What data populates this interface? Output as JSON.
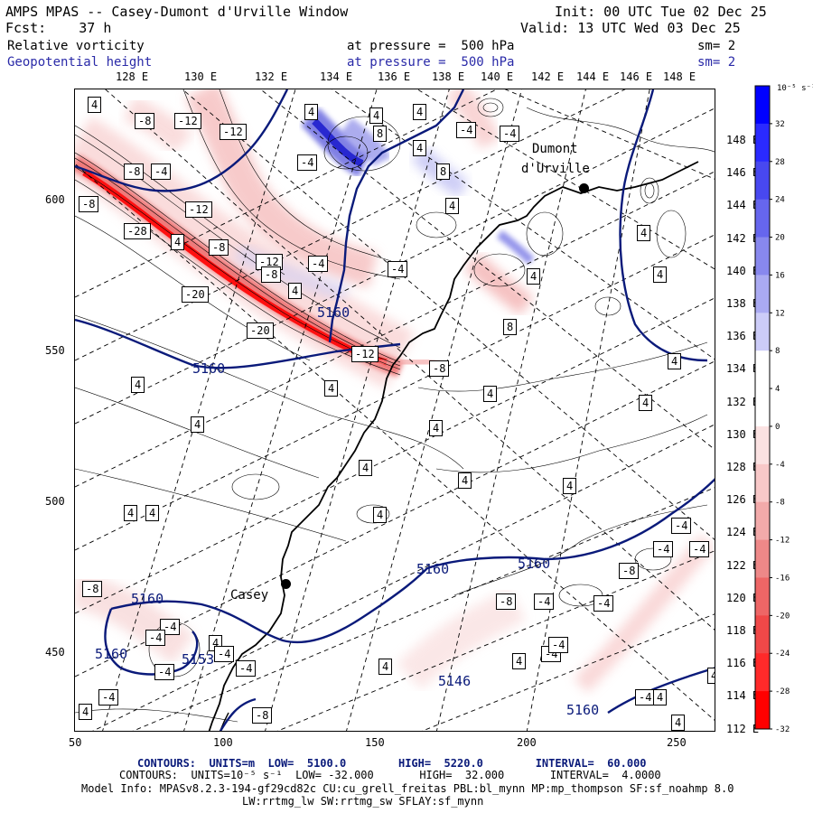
{
  "header": {
    "model_title": "AMPS MPAS -- Casey-Dumont d'Urville Window",
    "init": "Init: 00 UTC Tue 02 Dec 25",
    "fcst": "Fcst:    37 h",
    "valid": "Valid: 13 UTC Wed 03 Dec 25",
    "field1_name": "Relative vorticity",
    "field1_level": "at pressure =  500 hPa",
    "field1_sm": "sm= 2",
    "field2_name": "Geopotential height",
    "field2_level": "at pressure =  500 hPa",
    "field2_sm": "sm= 2"
  },
  "axes": {
    "top_lon": [
      "128 E",
      "130 E",
      "132 E",
      "134 E",
      "136 E",
      "138 E",
      "140 E",
      "142 E",
      "144 E",
      "146 E",
      "148 E"
    ],
    "right_lon": [
      "148 E",
      "146 E",
      "144 E",
      "142 E",
      "140 E",
      "138 E",
      "136 E",
      "134 E",
      "132 E",
      "130 E",
      "128 E",
      "126 E",
      "124 E",
      "122 E",
      "120 E",
      "118 E",
      "116 E",
      "114 E",
      "112 E"
    ],
    "left_y": [
      "600",
      "550",
      "500",
      "450"
    ],
    "bottom_x": [
      "50",
      "100",
      "150",
      "200",
      "250"
    ]
  },
  "places": {
    "dumont": "Dumont d'Urville",
    "dumont_line1": "Dumont",
    "dumont_line2": "d'Urville",
    "casey": "Casey"
  },
  "colorbar": {
    "unit": "10⁻⁵ s⁻¹",
    "ticks": [
      "32",
      "28",
      "24",
      "20",
      "16",
      "12",
      "8",
      "4",
      "0",
      "-4",
      "-8",
      "-12",
      "-16",
      "-20",
      "-24",
      "-28",
      "-32"
    ],
    "colors": [
      "#0000ff",
      "#2a2aff",
      "#4848f0",
      "#6666ee",
      "#8888ee",
      "#aaaaf2",
      "#ccccf8",
      "#ffffff",
      "#ffffff",
      "#fbe2e2",
      "#f8c8c8",
      "#f2aaaa",
      "#ee8888",
      "#ee6666",
      "#f04848",
      "#ff2a2a",
      "#ff0000"
    ]
  },
  "geopotential_labels": [
    "5160",
    "5160",
    "5160",
    "5160",
    "5160",
    "5160",
    "5160",
    "5146",
    "5160",
    "5153"
  ],
  "vorticity_labels": [
    "4",
    "-8",
    "-12",
    "-8",
    "-12",
    "-4",
    "4",
    "-4",
    "4",
    "8",
    "-4",
    "4",
    "4",
    "-8",
    "-12",
    "-8",
    "-12",
    "-4",
    "-8",
    "-4",
    "8",
    "-28",
    "-20",
    "-20",
    "4",
    "4",
    "-12",
    "-8",
    "4",
    "4",
    "4",
    "4",
    "4",
    "4",
    "4",
    "4",
    "4",
    "8",
    "4",
    "4",
    "4",
    "4",
    "4",
    "-4",
    "-8",
    "-4",
    "-4",
    "-4",
    "-8",
    "-4",
    "-4",
    "-4",
    "-4",
    "-4",
    "-4",
    "4",
    "-8",
    "-4",
    "4",
    "-4",
    "4",
    "4",
    "4",
    "4",
    "4",
    "-4",
    "-4",
    "-8",
    "-4",
    "4",
    "4",
    "4"
  ],
  "footer": {
    "contours1": "CONTOURS:  UNITS=m  LOW=  5100.0        HIGH=  5220.0        INTERVAL=  60.000",
    "contours2": "CONTOURS:  UNITS=10⁻⁵ s⁻¹  LOW= -32.000       HIGH=  32.000       INTERVAL=  4.0000",
    "model_info": "Model Info: MPASv8.2.3-194-gf29cd82c CU:cu_grell_freitas PBL:bl_mynn MP:mp_thompson SF:sf_noahmp 8.0",
    "model_info2": "LW:rrtmg_lw SW:rrtmg_sw SFLAY:sf_mynn"
  }
}
